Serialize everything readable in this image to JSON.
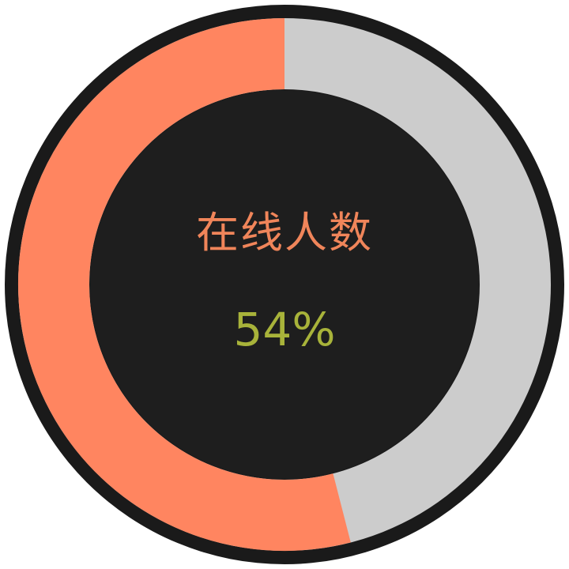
{
  "gauge": {
    "label": "在线人数",
    "value_text": "54%",
    "fraction": 0.54,
    "colors": {
      "filled": "#ff8560",
      "remaining": "#cccccc",
      "center": "#1e1e1e",
      "outer_border": "#1a1a1a",
      "label": "#f0855a",
      "value": "#a8b33a"
    }
  }
}
